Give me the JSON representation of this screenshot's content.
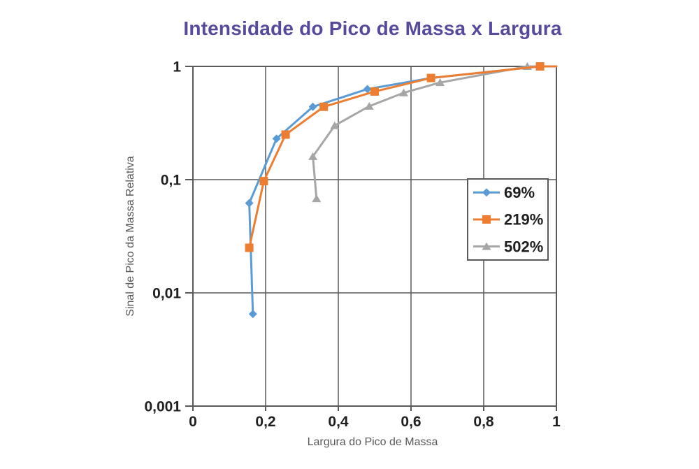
{
  "chart_data": {
    "type": "line",
    "title": "Intensidade do Pico de Massa x Largura",
    "title_color": "#564a9c",
    "xlabel": "Largura do Pico de Massa",
    "ylabel": "Sinal de Pico da Massa Relativa",
    "x_scale": "linear",
    "y_scale": "log",
    "xlim": [
      0,
      1
    ],
    "ylim": [
      0.001,
      1
    ],
    "grid": true,
    "grid_color": "#595959",
    "tick_label_color": "#1f1f1f",
    "x_ticks": [
      {
        "value": 0,
        "label": "0"
      },
      {
        "value": 0.2,
        "label": "0,2"
      },
      {
        "value": 0.4,
        "label": "0,4"
      },
      {
        "value": 0.6,
        "label": "0,6"
      },
      {
        "value": 0.8,
        "label": "0,8"
      },
      {
        "value": 1,
        "label": "1"
      }
    ],
    "y_ticks": [
      {
        "value": 1,
        "label": "1"
      },
      {
        "value": 0.1,
        "label": "0,1"
      },
      {
        "value": 0.01,
        "label": "0,01"
      },
      {
        "value": 0.001,
        "label": "0,001"
      }
    ],
    "legend_position": "middle-right",
    "series": [
      {
        "name": "69%",
        "color": "#5b9bd5",
        "marker": "diamond",
        "points": [
          [
            0.165,
            0.0065
          ],
          [
            0.155,
            0.062
          ],
          [
            0.23,
            0.23
          ],
          [
            0.33,
            0.44
          ],
          [
            0.48,
            0.63
          ],
          [
            0.655,
            0.79
          ],
          [
            0.955,
            1.0
          ],
          [
            1.0,
            1.0
          ]
        ],
        "hide_marker_from_index": 5
      },
      {
        "name": "219%",
        "color": "#ed7d31",
        "marker": "square",
        "points": [
          [
            0.155,
            0.025
          ],
          [
            0.195,
            0.097
          ],
          [
            0.255,
            0.25
          ],
          [
            0.36,
            0.44
          ],
          [
            0.5,
            0.6
          ],
          [
            0.655,
            0.79
          ],
          [
            0.955,
            1.0
          ],
          [
            1.0,
            1.0
          ]
        ],
        "hide_marker_from_index": 7
      },
      {
        "name": "502%",
        "color": "#a6a6a6",
        "marker": "triangle",
        "points": [
          [
            0.34,
            0.068
          ],
          [
            0.33,
            0.16
          ],
          [
            0.39,
            0.3
          ],
          [
            0.485,
            0.445
          ],
          [
            0.58,
            0.585
          ],
          [
            0.68,
            0.72
          ],
          [
            0.92,
            1.0
          ],
          [
            1.0,
            1.0
          ]
        ],
        "hide_marker_from_index": 7
      }
    ],
    "draw_order": [
      0,
      2,
      1
    ]
  }
}
